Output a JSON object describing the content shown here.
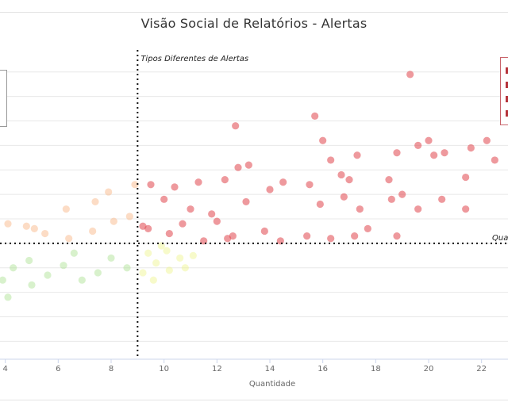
{
  "title": "Visão Social de Relatórios - Alertas",
  "chart_data": {
    "type": "scatter",
    "title": "Visão Social de Relatórios - Alertas",
    "xlabel": "Quantidade",
    "ylabel": "",
    "xlim": [
      3.8,
      23.0
    ],
    "ylim": [
      -1.7,
      10.9
    ],
    "x_ticks": [
      "4",
      "6",
      "8",
      "10",
      "12",
      "14",
      "16",
      "18",
      "20",
      "22"
    ],
    "x_tick_values": [
      4,
      6,
      8,
      10,
      12,
      14,
      16,
      18,
      20,
      22
    ],
    "grid": true,
    "annotations": {
      "vertical_line_label": "Tipos Diferentes de Alertas",
      "horizontal_line_label": "Quantidade",
      "vertical_line_x": 9.0,
      "horizontal_line_y": 3.0
    },
    "colors": {
      "red": "#e0464d",
      "orange": "#f8b27f",
      "green": "#a9e08f",
      "yellow": "#eef58a"
    },
    "series": [
      {
        "color": "red",
        "points": [
          [
            19.3,
            9.9
          ],
          [
            15.7,
            8.2
          ],
          [
            12.7,
            7.8
          ],
          [
            16.0,
            7.2
          ],
          [
            20.0,
            7.2
          ],
          [
            21.6,
            6.9
          ],
          [
            22.2,
            7.2
          ],
          [
            22.5,
            6.4
          ],
          [
            18.8,
            6.7
          ],
          [
            20.2,
            6.6
          ],
          [
            16.3,
            6.4
          ],
          [
            17.3,
            6.6
          ],
          [
            19.6,
            7.0
          ],
          [
            20.6,
            6.7
          ],
          [
            13.2,
            6.2
          ],
          [
            12.8,
            6.1
          ],
          [
            14.5,
            5.5
          ],
          [
            18.5,
            5.6
          ],
          [
            9.5,
            5.4
          ],
          [
            10.4,
            5.3
          ],
          [
            11.3,
            5.5
          ],
          [
            12.3,
            5.6
          ],
          [
            15.5,
            5.4
          ],
          [
            17.0,
            5.6
          ],
          [
            16.7,
            5.8
          ],
          [
            21.4,
            5.7
          ],
          [
            10.0,
            4.8
          ],
          [
            11.0,
            4.4
          ],
          [
            13.1,
            4.7
          ],
          [
            15.9,
            4.6
          ],
          [
            18.6,
            4.8
          ],
          [
            20.5,
            4.8
          ],
          [
            21.4,
            4.4
          ],
          [
            19.6,
            4.4
          ],
          [
            17.4,
            4.4
          ],
          [
            9.2,
            3.7
          ],
          [
            10.2,
            3.4
          ],
          [
            11.5,
            3.1
          ],
          [
            12.4,
            3.2
          ],
          [
            14.4,
            3.1
          ],
          [
            16.3,
            3.2
          ],
          [
            17.7,
            3.6
          ],
          [
            13.8,
            3.5
          ],
          [
            9.4,
            3.6
          ],
          [
            12.6,
            3.3
          ],
          [
            15.4,
            3.3
          ],
          [
            17.2,
            3.3
          ],
          [
            18.8,
            3.3
          ],
          [
            16.8,
            4.9
          ],
          [
            19.0,
            5.0
          ],
          [
            14.0,
            5.2
          ],
          [
            11.8,
            4.2
          ],
          [
            10.7,
            3.8
          ],
          [
            12.0,
            3.9
          ]
        ]
      },
      {
        "color": "orange",
        "points": [
          [
            4.1,
            3.8
          ],
          [
            4.8,
            3.7
          ],
          [
            5.5,
            3.4
          ],
          [
            6.4,
            3.2
          ],
          [
            7.3,
            3.5
          ],
          [
            8.1,
            3.9
          ],
          [
            8.7,
            4.1
          ],
          [
            7.9,
            5.1
          ],
          [
            7.4,
            4.7
          ],
          [
            6.3,
            4.4
          ],
          [
            5.1,
            3.6
          ],
          [
            8.9,
            5.4
          ]
        ]
      },
      {
        "color": "green",
        "points": [
          [
            3.9,
            1.5
          ],
          [
            4.3,
            2.0
          ],
          [
            4.9,
            2.3
          ],
          [
            5.6,
            1.7
          ],
          [
            6.2,
            2.1
          ],
          [
            6.9,
            1.5
          ],
          [
            7.5,
            1.8
          ],
          [
            8.0,
            2.4
          ],
          [
            8.6,
            2.0
          ],
          [
            4.1,
            0.8
          ],
          [
            5.0,
            1.3
          ],
          [
            6.6,
            2.6
          ]
        ]
      },
      {
        "color": "yellow",
        "points": [
          [
            9.2,
            1.8
          ],
          [
            9.7,
            2.2
          ],
          [
            10.2,
            1.9
          ],
          [
            10.6,
            2.4
          ],
          [
            9.4,
            2.6
          ],
          [
            10.1,
            2.7
          ],
          [
            10.8,
            2.0
          ],
          [
            9.6,
            1.5
          ],
          [
            11.1,
            2.5
          ],
          [
            9.9,
            2.9
          ]
        ]
      }
    ]
  }
}
